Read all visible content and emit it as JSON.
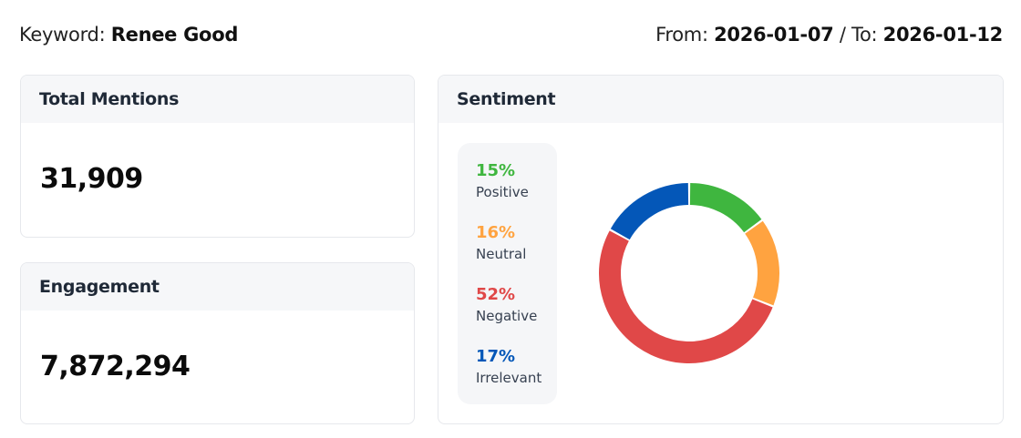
{
  "header": {
    "keyword_label": "Keyword:",
    "keyword": "Renee Good",
    "from_label": "From:",
    "from": "2026-01-07",
    "to_label": "/ To:",
    "to": "2026-01-12"
  },
  "total_mentions": {
    "title": "Total Mentions",
    "value": "31,909"
  },
  "engagement": {
    "title": "Engagement",
    "value": "7,872,294"
  },
  "sentiment": {
    "title": "Sentiment",
    "items": [
      {
        "pct": "15%",
        "label": "Positive",
        "color": "#3fb63f"
      },
      {
        "pct": "16%",
        "label": "Neutral",
        "color": "#ffa340"
      },
      {
        "pct": "52%",
        "label": "Negative",
        "color": "#e04848"
      },
      {
        "pct": "17%",
        "label": "Irrelevant",
        "color": "#0457b8"
      }
    ]
  },
  "chart_data": {
    "type": "pie",
    "variant": "donut",
    "categories": [
      "Positive",
      "Neutral",
      "Negative",
      "Irrelevant"
    ],
    "values": [
      15,
      16,
      52,
      17
    ],
    "colors": [
      "#3fb63f",
      "#ffa340",
      "#e04848",
      "#0457b8"
    ]
  }
}
